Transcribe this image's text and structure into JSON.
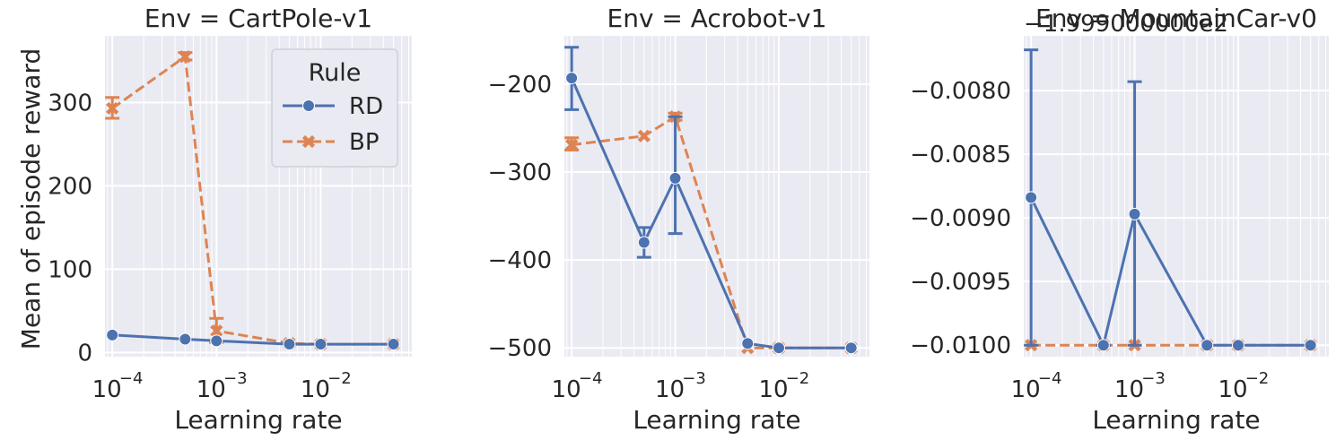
{
  "figure": {
    "ylabel": "Mean of episode reward",
    "xlabel": "Learning rate",
    "legend": {
      "title": "Rule",
      "placement": "top-right",
      "entries": [
        {
          "name": "RD",
          "color": "#4c72b0",
          "marker": "circle",
          "dash": "solid"
        },
        {
          "name": "BP",
          "color": "#dd8452",
          "marker": "x",
          "dash": "dashed"
        }
      ]
    }
  },
  "chart_data": [
    {
      "type": "line",
      "title": "Env = CartPole-v1",
      "xscale": "log",
      "xlim": [
        8.5e-05,
        0.075
      ],
      "ylim": [
        -5,
        380
      ],
      "yticks": [
        0,
        100,
        200,
        300
      ],
      "ytick_labels": [
        "0",
        "100",
        "200",
        "300"
      ],
      "xticks": [
        0.0001,
        0.001,
        0.01
      ],
      "xtick_labels": [
        "10",
        "10",
        "10"
      ],
      "xtick_exponents": [
        "−4",
        "−3",
        "−2"
      ],
      "grid": true,
      "legend": true,
      "x": [
        0.0001,
        0.0005,
        0.001,
        0.005,
        0.01,
        0.05
      ],
      "series": [
        {
          "name": "RD",
          "values": [
            21,
            16,
            14,
            10,
            10,
            10
          ],
          "err_low": [
            null,
            null,
            null,
            null,
            null,
            null
          ],
          "err_high": [
            null,
            null,
            null,
            null,
            null,
            null
          ]
        },
        {
          "name": "BP",
          "values": [
            293,
            355,
            26,
            11,
            10,
            10
          ],
          "err_low": [
            281,
            351,
            12,
            null,
            null,
            null
          ],
          "err_high": [
            306,
            360,
            41,
            null,
            null,
            null
          ]
        }
      ]
    },
    {
      "type": "line",
      "title": "Env = Acrobot-v1",
      "xscale": "log",
      "xlim": [
        8.5e-05,
        0.075
      ],
      "ylim": [
        -510,
        -145
      ],
      "yticks": [
        -500,
        -400,
        -300,
        -200
      ],
      "ytick_labels": [
        "−500",
        "−400",
        "−300",
        "−200"
      ],
      "xticks": [
        0.0001,
        0.001,
        0.01
      ],
      "xtick_labels": [
        "10",
        "10",
        "10"
      ],
      "xtick_exponents": [
        "−4",
        "−3",
        "−2"
      ],
      "grid": true,
      "legend": false,
      "x": [
        0.0001,
        0.0005,
        0.001,
        0.005,
        0.01,
        0.05
      ],
      "series": [
        {
          "name": "RD",
          "values": [
            -193,
            -380,
            -307,
            -495,
            -500,
            -500
          ],
          "err_low": [
            -229,
            -397,
            -370,
            null,
            null,
            null
          ],
          "err_high": [
            -158,
            -363,
            -237,
            null,
            null,
            null
          ]
        },
        {
          "name": "BP",
          "values": [
            -269,
            -259,
            -237,
            -500,
            -500,
            -500
          ],
          "err_low": [
            -275,
            null,
            -241,
            null,
            null,
            null
          ],
          "err_high": [
            -261,
            null,
            -233,
            null,
            null,
            null
          ]
        }
      ]
    },
    {
      "type": "line",
      "title": "Env = MountainCar-v0",
      "offset_label": "−1.999000000e2",
      "xscale": "log",
      "xlim": [
        8.5e-05,
        0.075
      ],
      "ylim": [
        -0.01009,
        -0.00757
      ],
      "yticks": [
        -0.01,
        -0.0095,
        -0.009,
        -0.0085,
        -0.008
      ],
      "ytick_labels": [
        "−0.0100",
        "−0.0095",
        "−0.0090",
        "−0.0085",
        "−0.0080"
      ],
      "xticks": [
        0.0001,
        0.001,
        0.01
      ],
      "xtick_labels": [
        "10",
        "10",
        "10"
      ],
      "xtick_exponents": [
        "−4",
        "−3",
        "−2"
      ],
      "grid": true,
      "legend": false,
      "x": [
        0.0001,
        0.0005,
        0.001,
        0.005,
        0.01,
        0.05
      ],
      "series": [
        {
          "name": "RD",
          "values": [
            -0.00884,
            -0.01,
            -0.00897,
            -0.01,
            -0.01,
            -0.01
          ],
          "err_low": [
            -0.01,
            -0.01,
            -0.01,
            null,
            null,
            null
          ],
          "err_high": [
            -0.00768,
            -0.01,
            -0.00793,
            null,
            null,
            null
          ]
        },
        {
          "name": "BP",
          "values": [
            -0.01,
            -0.01,
            -0.01,
            -0.01,
            -0.01,
            -0.01
          ],
          "err_low": [
            null,
            null,
            null,
            null,
            null,
            null
          ],
          "err_high": [
            null,
            null,
            null,
            null,
            null,
            null
          ]
        }
      ]
    }
  ]
}
